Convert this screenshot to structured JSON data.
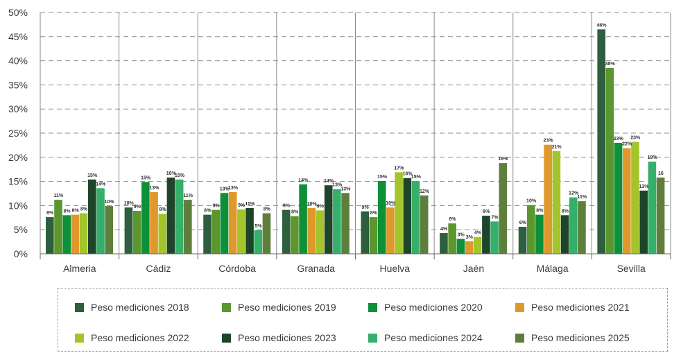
{
  "chart_data": {
    "type": "bar",
    "categories": [
      "Almeria",
      "Cádiz",
      "Córdoba",
      "Granada",
      "Huelva",
      "Jaén",
      "Málaga",
      "Sevilla"
    ],
    "ylim": [
      0,
      50
    ],
    "yticks": [
      "0%",
      "5%",
      "10%",
      "15%",
      "20%",
      "25%",
      "30%",
      "35%",
      "40%",
      "45%",
      "50%"
    ],
    "legend_position": "bottom",
    "series": [
      {
        "name": "Peso mediciones 2018",
        "color": "#2d5e3e",
        "values": [
          7.6,
          9.6,
          8.1,
          9.1,
          8.8,
          4.3,
          5.6,
          46.5
        ],
        "labels": [
          "8%",
          "10%",
          "8%",
          "9%",
          "9%",
          "4%",
          "6%",
          "46%"
        ]
      },
      {
        "name": "Peso mediciones 2019",
        "color": "#5b962e",
        "values": [
          11.2,
          8.9,
          9.1,
          7.8,
          7.6,
          6.3,
          10.1,
          38.5
        ],
        "labels": [
          "11%",
          "9%",
          "9%",
          "8%",
          "8%",
          "6%",
          "10%",
          "38%"
        ]
      },
      {
        "name": "Peso mediciones 2020",
        "color": "#0c9038",
        "values": [
          8.0,
          14.9,
          12.6,
          14.4,
          15.1,
          3.1,
          8.1,
          23.0
        ],
        "labels": [
          "8%",
          "15%",
          "13%",
          "14%",
          "15%",
          "3%",
          "8%",
          "23%"
        ]
      },
      {
        "name": "Peso mediciones 2021",
        "color": "#df982b",
        "values": [
          8.1,
          12.8,
          12.8,
          9.5,
          9.6,
          2.6,
          22.6,
          21.9
        ],
        "labels": [
          "8%",
          "13%",
          "13%",
          "10%",
          "10%",
          "3%",
          "23%",
          "22%"
        ]
      },
      {
        "name": "Peso mediciones 2022",
        "color": "#a3c52b",
        "values": [
          8.4,
          8.3,
          9.2,
          9.0,
          16.9,
          3.5,
          21.3,
          23.2
        ],
        "labels": [
          "8%",
          "8%",
          "9%",
          "9%",
          "17%",
          "4%",
          "21%",
          "23%"
        ]
      },
      {
        "name": "Peso mediciones 2023",
        "color": "#1e4529",
        "values": [
          15.4,
          15.8,
          9.5,
          14.2,
          15.7,
          7.9,
          8.0,
          13.1
        ],
        "labels": [
          "15%",
          "16%",
          "10%",
          "14%",
          "16%",
          "8%",
          "8%",
          "13%"
        ]
      },
      {
        "name": "Peso mediciones 2024",
        "color": "#35b06a",
        "values": [
          13.6,
          15.4,
          4.9,
          13.4,
          15.1,
          6.7,
          11.7,
          19.1
        ],
        "labels": [
          "14%",
          "15%",
          "5%",
          "13%",
          "15%",
          "7%",
          "12%",
          "19%"
        ]
      },
      {
        "name": "Peso mediciones 2025",
        "color": "#5e7f3c",
        "values": [
          9.9,
          11.2,
          8.4,
          12.6,
          12.1,
          18.8,
          10.9,
          15.8
        ],
        "labels": [
          "10%",
          "11%",
          "8%",
          "13%",
          "12%",
          "19%",
          "11%",
          "16"
        ]
      }
    ]
  }
}
